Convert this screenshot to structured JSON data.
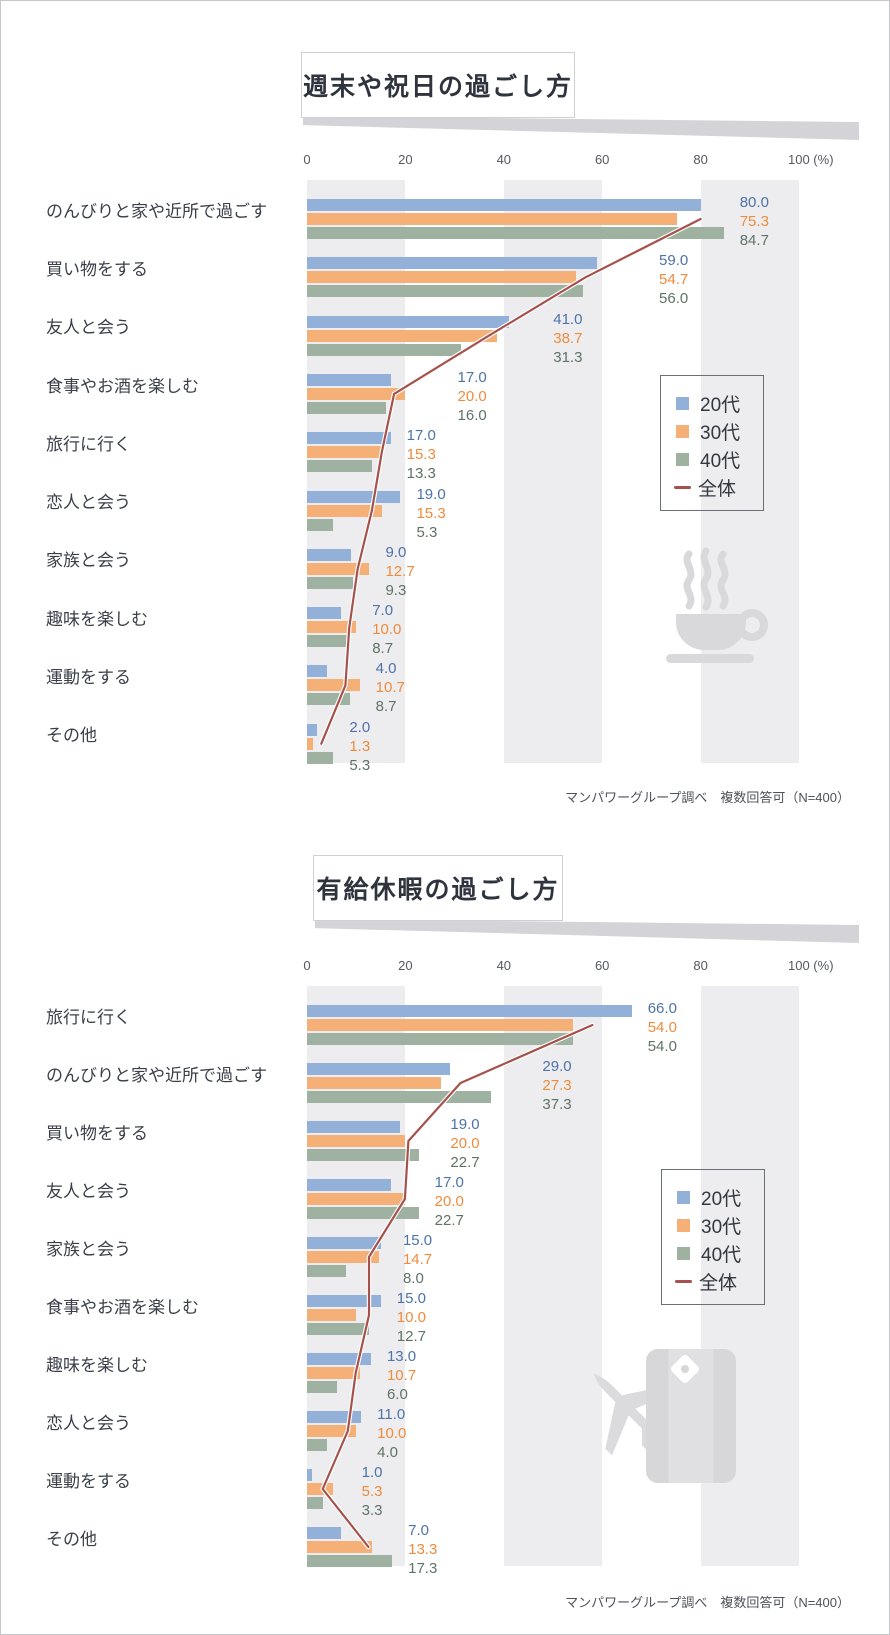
{
  "page": {
    "footer_note": "マンパワーグループ調べ　複数回答可（N=400）"
  },
  "legend": {
    "items": [
      {
        "label": "20代",
        "color": "#92b0d8",
        "marker": "square"
      },
      {
        "label": "30代",
        "color": "#f5b077",
        "marker": "square"
      },
      {
        "label": "40代",
        "color": "#9fb2a1",
        "marker": "square"
      },
      {
        "label": "全体",
        "color": "#a5524c",
        "marker": "line"
      }
    ]
  },
  "chart_data": [
    {
      "type": "bar",
      "orientation": "horizontal",
      "title": "週末や祝日の過ごし方",
      "categories": [
        "のんびりと家や近所で過ごす",
        "買い物をする",
        "友人と会う",
        "食事やお酒を楽しむ",
        "旅行に行く",
        "恋人と会う",
        "家族と会う",
        "趣味を楽しむ",
        "運動をする",
        "その他"
      ],
      "series": [
        {
          "name": "20代",
          "color": "#92b0d8",
          "label_color": "#4d73a7",
          "values": [
            80.0,
            59.0,
            41.0,
            17.0,
            17.0,
            19.0,
            9.0,
            7.0,
            4.0,
            2.0
          ]
        },
        {
          "name": "30代",
          "color": "#f5b077",
          "label_color": "#ee8b3c",
          "values": [
            75.3,
            54.7,
            38.7,
            20.0,
            15.3,
            15.3,
            12.7,
            10.0,
            10.7,
            1.3
          ]
        },
        {
          "name": "40代",
          "color": "#9fb2a1",
          "label_color": "#5f7366",
          "values": [
            84.7,
            56.0,
            31.3,
            16.0,
            13.3,
            5.3,
            9.3,
            8.7,
            8.7,
            5.3
          ]
        }
      ],
      "line_series": {
        "name": "全体",
        "color": "#a5524c",
        "values": [
          80.0,
          56.6,
          37.0,
          17.7,
          15.2,
          13.2,
          10.3,
          8.6,
          7.8,
          2.9
        ]
      },
      "xlim": [
        0,
        100
      ],
      "x_ticks": [
        0,
        20,
        40,
        60,
        80,
        100
      ],
      "x_unit": "(%)",
      "grid_bands": [
        [
          0,
          20
        ],
        [
          40,
          60
        ],
        [
          80,
          100
        ]
      ],
      "value_labels": true,
      "legend_position": "middle-right",
      "watermark": "coffee-icon",
      "footer": "マンパワーグループ調べ　複数回答可（N=400）"
    },
    {
      "type": "bar",
      "orientation": "horizontal",
      "title": "有給休暇の過ごし方",
      "categories": [
        "旅行に行く",
        "のんびりと家や近所で過ごす",
        "買い物をする",
        "友人と会う",
        "家族と会う",
        "食事やお酒を楽しむ",
        "趣味を楽しむ",
        "恋人と会う",
        "運動をする",
        "その他"
      ],
      "series": [
        {
          "name": "20代",
          "color": "#92b0d8",
          "label_color": "#4d73a7",
          "values": [
            66.0,
            29.0,
            19.0,
            17.0,
            15.0,
            15.0,
            13.0,
            11.0,
            1.0,
            7.0
          ]
        },
        {
          "name": "30代",
          "color": "#f5b077",
          "label_color": "#ee8b3c",
          "values": [
            54.0,
            27.3,
            20.0,
            20.0,
            14.7,
            10.0,
            10.7,
            10.0,
            5.3,
            13.3
          ]
        },
        {
          "name": "40代",
          "color": "#9fb2a1",
          "label_color": "#5f7366",
          "values": [
            54.0,
            37.3,
            22.7,
            22.7,
            8.0,
            12.7,
            6.0,
            4.0,
            3.3,
            17.3
          ]
        }
      ],
      "line_series": {
        "name": "全体",
        "color": "#a5524c",
        "values": [
          58.0,
          31.2,
          20.6,
          19.9,
          12.6,
          12.6,
          9.9,
          8.3,
          3.2,
          12.5
        ]
      },
      "xlim": [
        0,
        100
      ],
      "x_ticks": [
        0,
        20,
        40,
        60,
        80,
        100
      ],
      "x_unit": "(%)",
      "grid_bands": [
        [
          0,
          20
        ],
        [
          40,
          60
        ],
        [
          80,
          100
        ]
      ],
      "value_labels": true,
      "legend_position": "middle-right",
      "watermark": "airplane-suitcase-icons",
      "footer": "マンパワーグループ調べ　複数回答可（N=400）"
    }
  ]
}
